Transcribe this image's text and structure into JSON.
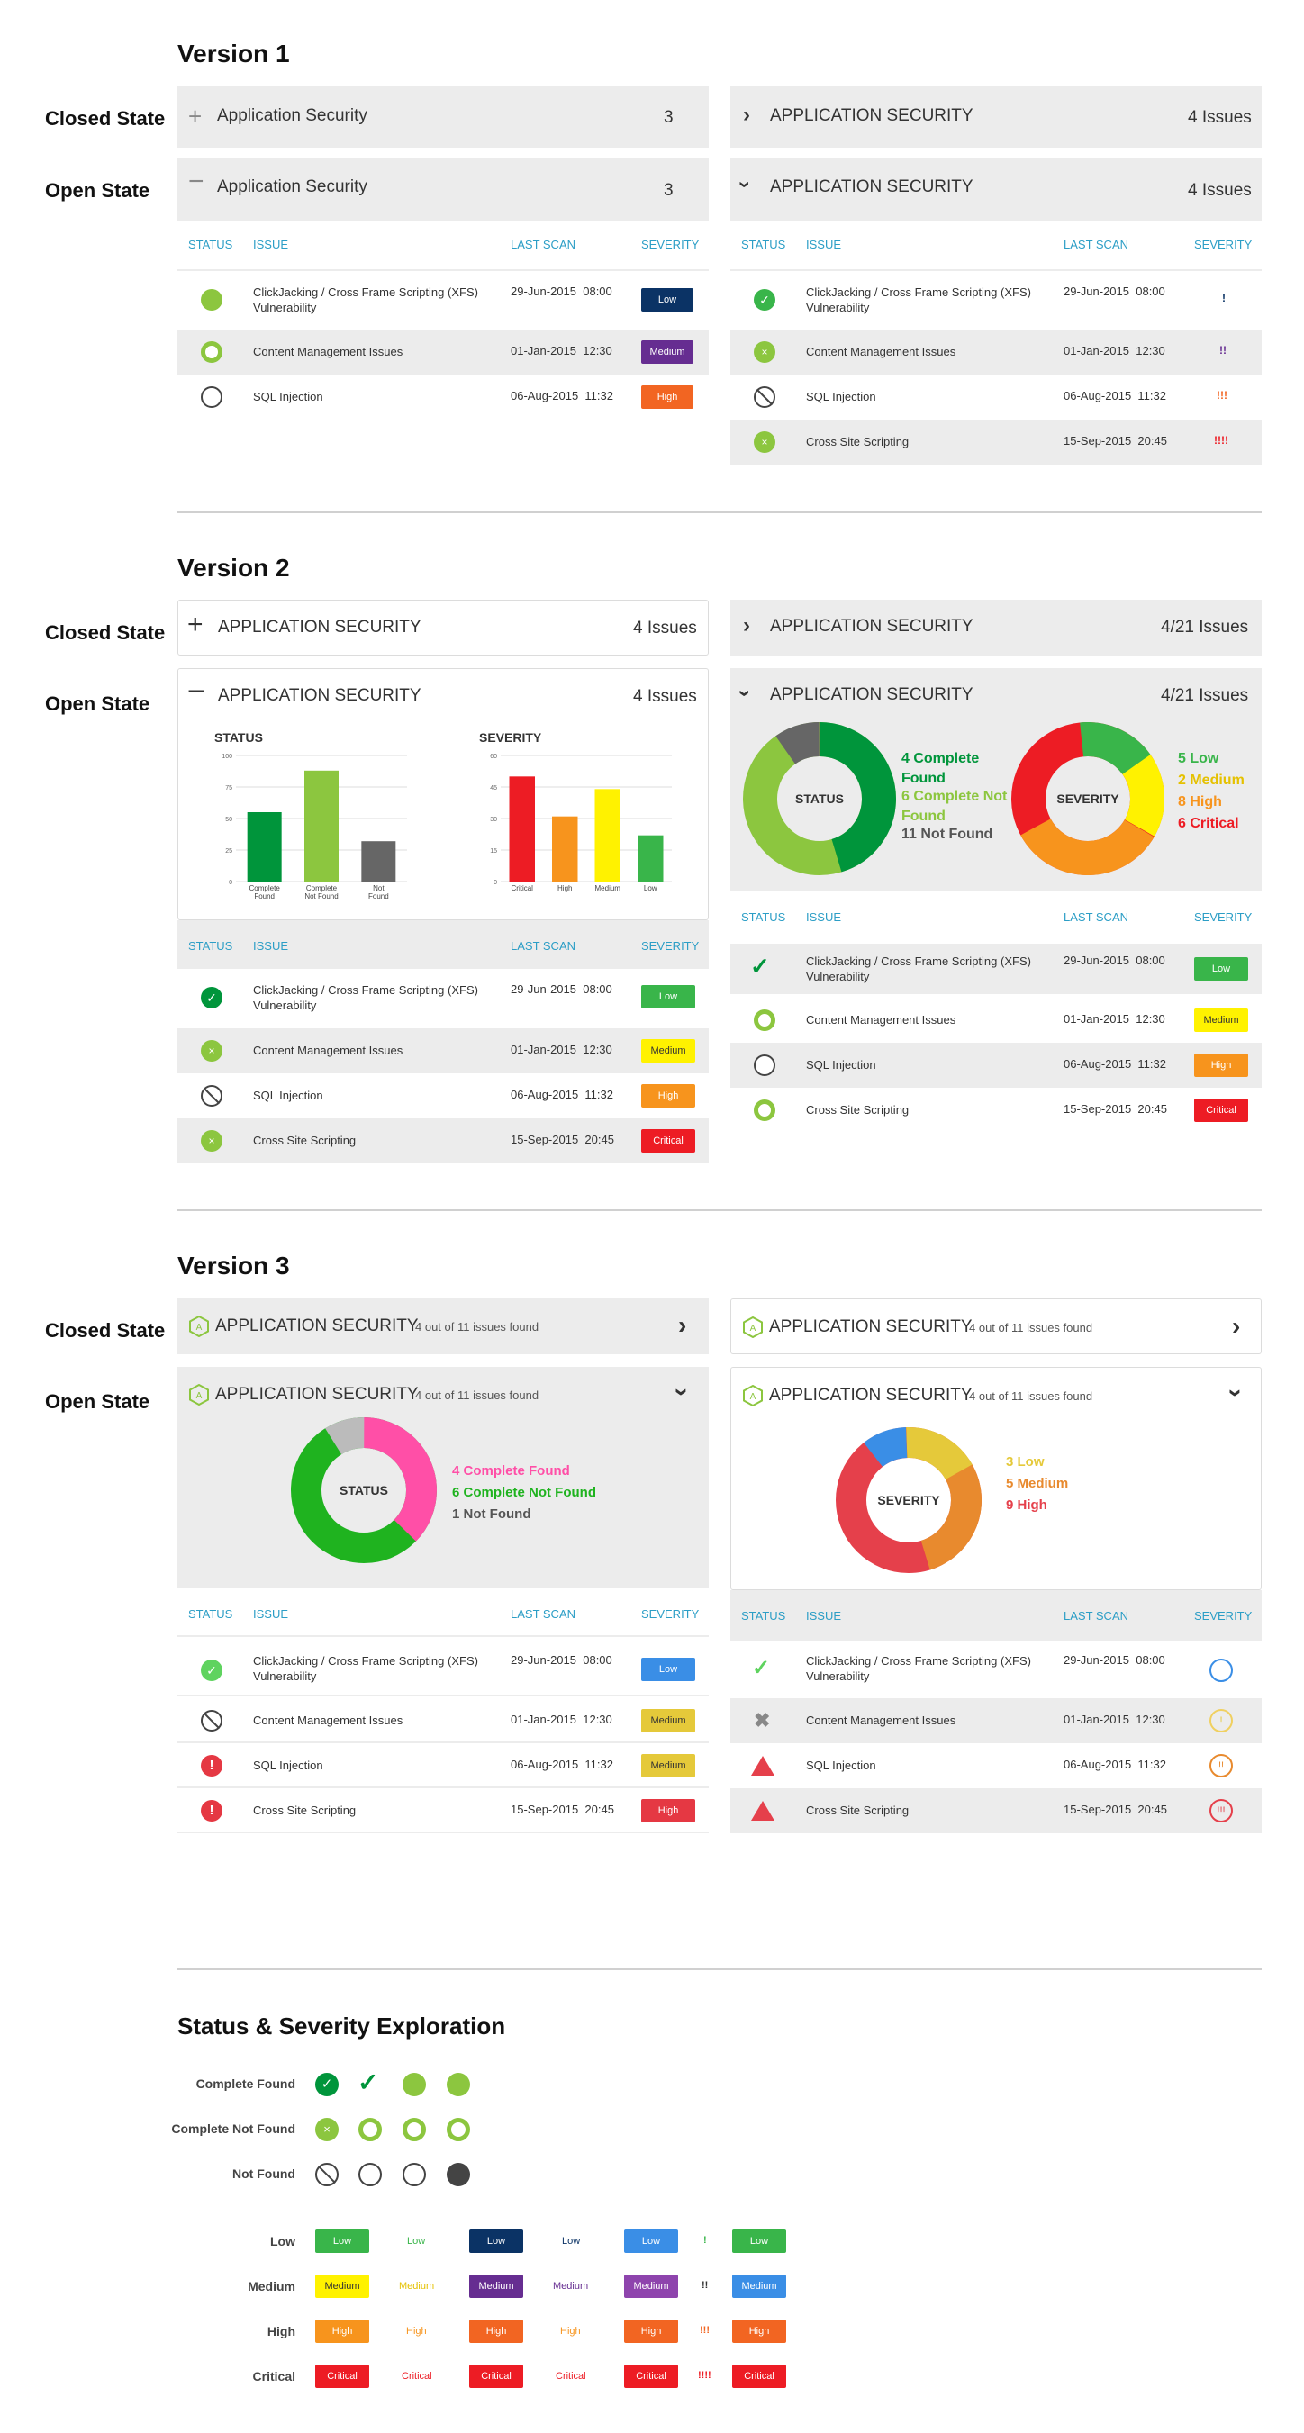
{
  "colors": {
    "teal": "#2c9ec6",
    "green": "#00953b",
    "lightgreen": "#8cc63f",
    "green2": "#39b54a",
    "navy": "#0b3365",
    "purple": "#662d91",
    "orange": "#f26522",
    "yellow": "#fff200",
    "orange2": "#f7941d",
    "red": "#ed1c24",
    "blue": "#3a8ee6"
  },
  "v1": {
    "title": "Version 1",
    "closed_label": "Closed State",
    "open_label": "Open State",
    "left_closed": {
      "title": "Application Security",
      "count": "3"
    },
    "left_open": {
      "title": "Application Security",
      "count": "3"
    },
    "right_closed": {
      "title": "APPLICATION SECURITY",
      "count": "4 Issues"
    },
    "right_open": {
      "title": "APPLICATION SECURITY",
      "count": "4 Issues"
    },
    "headers": {
      "status": "STATUS",
      "issue": "ISSUE",
      "last_scan": "LAST SCAN",
      "severity": "SEVERITY"
    },
    "left_rows": [
      {
        "issue": "ClickJacking / Cross Frame Scripting (XFS) Vulnerability",
        "date": "29-Jun-2015",
        "time": "08:00",
        "severity": "Low"
      },
      {
        "issue": "Content Management Issues",
        "date": "01-Jan-2015",
        "time": "12:30",
        "severity": "Medium"
      },
      {
        "issue": "SQL Injection",
        "date": "06-Aug-2015",
        "time": "11:32",
        "severity": "High"
      }
    ],
    "right_rows": [
      {
        "issue": "ClickJacking / Cross Frame Scripting (XFS) Vulnerability",
        "date": "29-Jun-2015",
        "time": "08:00",
        "severity": "!"
      },
      {
        "issue": "Content Management Issues",
        "date": "01-Jan-2015",
        "time": "12:30",
        "severity": "!!"
      },
      {
        "issue": "SQL Injection",
        "date": "06-Aug-2015",
        "time": "11:32",
        "severity": "!!!"
      },
      {
        "issue": "Cross Site Scripting",
        "date": "15-Sep-2015",
        "time": "20:45",
        "severity": "!!!!"
      }
    ]
  },
  "v2": {
    "title": "Version 2",
    "closed_label": "Closed State",
    "open_label": "Open State",
    "left_closed": {
      "title": "APPLICATION SECURITY",
      "count": "4 Issues"
    },
    "left_open": {
      "title": "APPLICATION SECURITY",
      "count": "4 Issues"
    },
    "right_closed": {
      "title": "APPLICATION SECURITY",
      "count": "4/21 Issues"
    },
    "right_open": {
      "title": "APPLICATION SECURITY",
      "count": "4/21 Issues"
    },
    "status_chart": {
      "title": "STATUS",
      "yticks": [
        "100",
        "75",
        "50",
        "25",
        "0"
      ],
      "categories": [
        "Complete Found",
        "Complete Not Found",
        "Not Found"
      ],
      "values": [
        55,
        88,
        32
      ]
    },
    "severity_chart": {
      "title": "SEVERITY",
      "yticks": [
        "60",
        "45",
        "30",
        "15",
        "0"
      ],
      "categories": [
        "Critical",
        "High",
        "Medium",
        "Low"
      ],
      "values": [
        50,
        31,
        44,
        22
      ]
    },
    "status_donut": {
      "center": "STATUS",
      "legend": [
        "4 Complete Found",
        "6 Complete Not Found",
        "11 Not Found"
      ]
    },
    "severity_donut": {
      "center": "SEVERITY",
      "legend": [
        "5 Low",
        "2 Medium",
        "8 High",
        "6 Critical"
      ]
    },
    "headers": {
      "status": "STATUS",
      "issue": "ISSUE",
      "last_scan": "LAST SCAN",
      "severity": "SEVERITY"
    },
    "rows": [
      {
        "issue": "ClickJacking / Cross Frame Scripting (XFS) Vulnerability",
        "date": "29-Jun-2015",
        "time": "08:00",
        "severity": "Low"
      },
      {
        "issue": "Content Management Issues",
        "date": "01-Jan-2015",
        "time": "12:30",
        "severity": "Medium"
      },
      {
        "issue": "SQL Injection",
        "date": "06-Aug-2015",
        "time": "11:32",
        "severity": "High"
      },
      {
        "issue": "Cross Site Scripting",
        "date": "15-Sep-2015",
        "time": "20:45",
        "severity": "Critical"
      }
    ]
  },
  "v3": {
    "title": "Version 3",
    "closed_label": "Closed State",
    "open_label": "Open State",
    "panel_title": "APPLICATION SECURITY",
    "panel_sub": "4 out of 11 issues found",
    "status_donut": {
      "center": "STATUS",
      "legend": [
        "4 Complete Found",
        "6 Complete Not Found",
        "1 Not Found"
      ]
    },
    "severity_donut": {
      "center": "SEVERITY",
      "legend": [
        "3 Low",
        "5 Medium",
        "9 High"
      ]
    },
    "headers": {
      "status": "STATUS",
      "issue": "ISSUE",
      "last_scan": "LAST SCAN",
      "severity": "SEVERITY"
    },
    "rows": [
      {
        "issue": "ClickJacking / Cross Frame Scripting (XFS) Vulnerability",
        "date": "29-Jun-2015",
        "time": "08:00",
        "severity": "Low"
      },
      {
        "issue": "Content Management Issues",
        "date": "01-Jan-2015",
        "time": "12:30",
        "severity": "Medium"
      },
      {
        "issue": "SQL Injection",
        "date": "06-Aug-2015",
        "time": "11:32",
        "severity": "Medium"
      },
      {
        "issue": "Cross Site Scripting",
        "date": "15-Sep-2015",
        "time": "20:45",
        "severity": "High"
      }
    ]
  },
  "exploration": {
    "title": "Status & Severity Exploration",
    "status_labels": [
      "Complete Found",
      "Complete Not Found",
      "Not Found"
    ],
    "severity_labels": [
      "Low",
      "Medium",
      "High",
      "Critical"
    ],
    "exclaims": [
      "!",
      "!!",
      "!!!",
      "!!!!"
    ]
  }
}
